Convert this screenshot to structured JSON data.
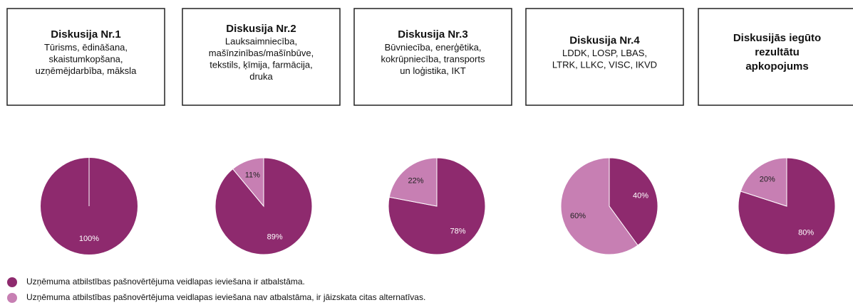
{
  "legend": [
    {
      "name": "Uzņēmuma atbilstības pašnovērtējuma veidlapas ieviešana ir atbalstāma.",
      "color": "#8e2a6e"
    },
    {
      "name": "Uzņēmuma atbilstības pašnovērtējuma veidlapas ieviešana nav atbalstāma, ir jāizskata citas alternatīvas.",
      "color": "#c77fb3"
    }
  ],
  "chart_data": [
    {
      "type": "pie",
      "title": [
        "Diskusija Nr.1"
      ],
      "subtitle": [
        "Tūrisms, ēdināšana,",
        "skaistumkopšana,",
        "uzņēmējdarbība, māksla"
      ],
      "values": [
        100
      ],
      "value_labels": [
        "100%"
      ]
    },
    {
      "type": "pie",
      "title": [
        "Diskusija Nr.2"
      ],
      "subtitle": [
        "Lauksaimniecība,",
        "mašīnzinības/mašīnbūve,",
        "tekstils, ķīmija, farmācija,",
        "druka"
      ],
      "values": [
        89,
        11
      ],
      "value_labels": [
        "89%",
        "11%"
      ]
    },
    {
      "type": "pie",
      "title": [
        "Diskusija Nr.3"
      ],
      "subtitle": [
        "Būvniecība, enerģētika,",
        "kokrūpniecība, transports",
        "un loģistika, IKT"
      ],
      "values": [
        78,
        22
      ],
      "value_labels": [
        "78%",
        "22%"
      ]
    },
    {
      "type": "pie",
      "title": [
        "Diskusija Nr.4"
      ],
      "subtitle": [
        "LDDK, LOSP, LBAS,",
        "LTRK, LLKC, VISC, IKVD"
      ],
      "values": [
        40,
        60
      ],
      "value_labels": [
        "40%",
        "60%"
      ]
    },
    {
      "type": "pie",
      "title": [
        "Diskusijās iegūto",
        "rezultātu",
        "apkopojums"
      ],
      "values": [
        80,
        20
      ],
      "value_labels": [
        "80%",
        "20%"
      ]
    }
  ]
}
